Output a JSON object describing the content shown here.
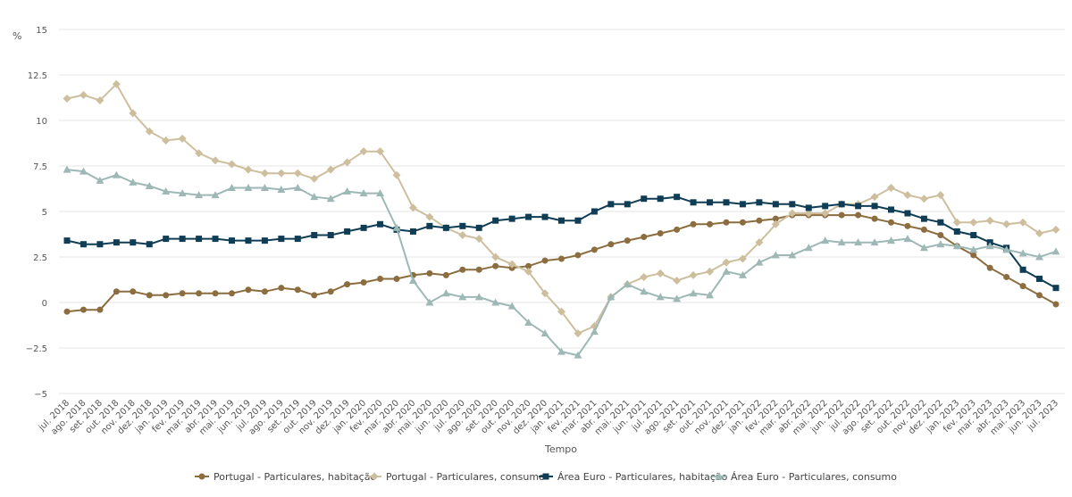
{
  "chart_data": {
    "type": "line",
    "ylabel": "%",
    "xlabel": "Tempo",
    "ylim": [
      -5,
      15
    ],
    "yticks": [
      15,
      12.5,
      10,
      7.5,
      5,
      2.5,
      0,
      -2.5,
      -5
    ],
    "ytick_labels": [
      "15",
      "12.5",
      "10",
      "7.5",
      "5",
      "2.5",
      "0",
      "−2.5",
      "−5"
    ],
    "grid": true,
    "legend_position": "bottom",
    "categories": [
      "jul. 2018",
      "ago. 2018",
      "set. 2018",
      "out. 2018",
      "nov. 2018",
      "dez. 2018",
      "jan. 2019",
      "fev. 2019",
      "mar. 2019",
      "abr. 2019",
      "mai. 2019",
      "jun. 2019",
      "jul. 2019",
      "ago. 2019",
      "set. 2019",
      "out. 2019",
      "nov. 2019",
      "dez. 2019",
      "jan. 2020",
      "fev. 2020",
      "mar. 2020",
      "abr. 2020",
      "mai. 2020",
      "jun. 2020",
      "jul. 2020",
      "ago. 2020",
      "set. 2020",
      "out. 2020",
      "nov. 2020",
      "dez. 2020",
      "jan. 2021",
      "fev. 2021",
      "mar. 2021",
      "abr. 2021",
      "mai. 2021",
      "jun. 2021",
      "jul. 2021",
      "ago. 2021",
      "set. 2021",
      "out. 2021",
      "nov. 2021",
      "dez. 2021",
      "jan. 2022",
      "fev. 2022",
      "mar. 2022",
      "abr. 2022",
      "mai. 2022",
      "jun. 2022",
      "jul. 2022",
      "ago. 2022",
      "set. 2022",
      "out. 2022",
      "nov. 2022",
      "dez. 2022",
      "jan. 2023",
      "fev. 2023",
      "mar. 2023",
      "abr. 2023",
      "mai. 2023",
      "jun. 2023",
      "jul. 2023"
    ],
    "series": [
      {
        "name": "Portugal - Particulares, habitação",
        "color": "#8c6d3f",
        "marker": "circle",
        "values": [
          -0.5,
          -0.4,
          -0.4,
          0.6,
          0.6,
          0.4,
          0.4,
          0.5,
          0.5,
          0.5,
          0.5,
          0.7,
          0.6,
          0.8,
          0.7,
          0.4,
          0.6,
          1.0,
          1.1,
          1.3,
          1.3,
          1.5,
          1.6,
          1.5,
          1.8,
          1.8,
          2.0,
          1.9,
          2.0,
          2.3,
          2.4,
          2.6,
          2.9,
          3.2,
          3.4,
          3.6,
          3.8,
          4.0,
          4.3,
          4.3,
          4.4,
          4.4,
          4.5,
          4.6,
          4.8,
          4.8,
          4.8,
          4.8,
          4.8,
          4.6,
          4.4,
          4.2,
          4.0,
          3.7,
          3.1,
          2.6,
          1.9,
          1.4,
          0.9,
          0.4,
          -0.1
        ]
      },
      {
        "name": "Portugal - Particulares, consumo",
        "color": "#cdbf9e",
        "marker": "diamond",
        "values": [
          11.2,
          11.4,
          11.1,
          12.0,
          10.4,
          9.4,
          8.9,
          9.0,
          8.2,
          7.8,
          7.6,
          7.3,
          7.1,
          7.1,
          7.1,
          6.8,
          7.3,
          7.7,
          8.3,
          8.3,
          7.0,
          5.2,
          4.7,
          4.1,
          3.7,
          3.5,
          2.5,
          2.1,
          1.7,
          0.5,
          -0.5,
          -1.7,
          -1.3,
          0.3,
          1.0,
          1.4,
          1.6,
          1.2,
          1.5,
          1.7,
          2.2,
          2.4,
          3.3,
          4.3,
          4.9,
          4.9,
          4.9,
          5.4,
          5.4,
          5.8,
          6.3,
          5.9,
          5.7,
          5.9,
          4.4,
          4.4,
          4.5,
          4.3,
          4.4,
          3.8,
          4.0
        ]
      },
      {
        "name": "Área Euro - Particulares, habitação",
        "color": "#0f3d55",
        "marker": "square",
        "values": [
          3.4,
          3.2,
          3.2,
          3.3,
          3.3,
          3.2,
          3.5,
          3.5,
          3.5,
          3.5,
          3.4,
          3.4,
          3.4,
          3.5,
          3.5,
          3.7,
          3.7,
          3.9,
          4.1,
          4.3,
          4.0,
          3.9,
          4.2,
          4.1,
          4.2,
          4.1,
          4.5,
          4.6,
          4.7,
          4.7,
          4.5,
          4.5,
          5.0,
          5.4,
          5.4,
          5.7,
          5.7,
          5.8,
          5.5,
          5.5,
          5.5,
          5.4,
          5.5,
          5.4,
          5.4,
          5.2,
          5.3,
          5.4,
          5.3,
          5.3,
          5.1,
          4.9,
          4.6,
          4.4,
          3.9,
          3.7,
          3.3,
          3.0,
          1.8,
          1.3,
          0.8
        ]
      },
      {
        "name": "Área Euro - Particulares, consumo",
        "color": "#9db8b5",
        "marker": "triangle",
        "values": [
          7.3,
          7.2,
          6.7,
          7.0,
          6.6,
          6.4,
          6.1,
          6.0,
          5.9,
          5.9,
          6.3,
          6.3,
          6.3,
          6.2,
          6.3,
          5.8,
          5.7,
          6.1,
          6.0,
          6.0,
          4.1,
          1.2,
          0.0,
          0.5,
          0.3,
          0.3,
          0.0,
          -0.2,
          -1.1,
          -1.7,
          -2.7,
          -2.9,
          -1.6,
          0.3,
          1.0,
          0.6,
          0.3,
          0.2,
          0.5,
          0.4,
          1.7,
          1.5,
          2.2,
          2.6,
          2.6,
          3.0,
          3.4,
          3.3,
          3.3,
          3.3,
          3.4,
          3.5,
          3.0,
          3.2,
          3.1,
          2.9,
          3.1,
          2.9,
          2.7,
          2.5,
          2.8
        ]
      }
    ]
  }
}
